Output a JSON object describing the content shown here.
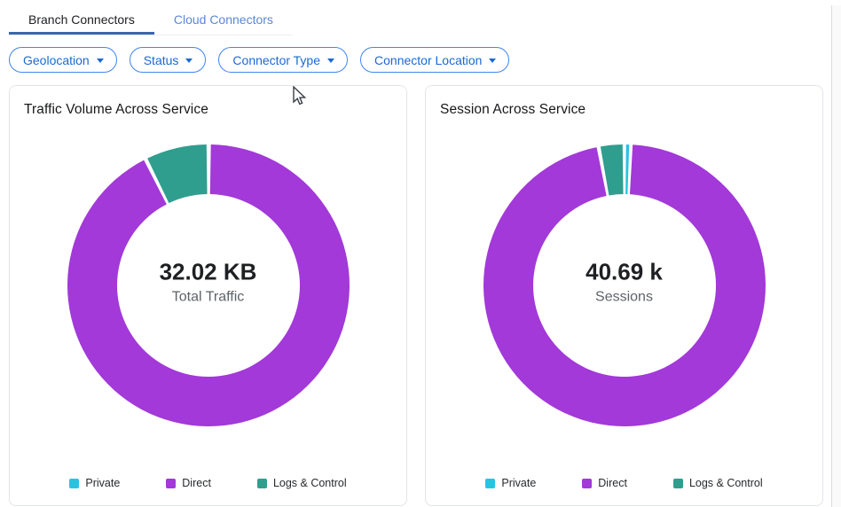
{
  "tabs": [
    {
      "label": "Branch Connectors",
      "active": true
    },
    {
      "label": "Cloud Connectors",
      "active": false
    }
  ],
  "filters": [
    {
      "label": "Geolocation"
    },
    {
      "label": "Status"
    },
    {
      "label": "Connector Type"
    },
    {
      "label": "Connector Location"
    }
  ],
  "colors": {
    "tab_underline": "#3a66b0",
    "filter_blue": "#1a69d4",
    "filter_border": "#4285f4",
    "private": "#29c3e1",
    "direct": "#a239d8",
    "logs_control": "#2f9e8e"
  },
  "chart_data": [
    {
      "type": "pie",
      "donut": true,
      "title": "Traffic Volume Across Service",
      "center_value": "32.02 KB",
      "center_label": "Total Traffic",
      "categories": [
        "Private",
        "Direct",
        "Logs & Control"
      ],
      "values_pct": [
        0.05,
        92.6,
        7.35
      ],
      "colors": [
        "#29c3e1",
        "#a239d8",
        "#2f9e8e"
      ],
      "legend_position": "bottom",
      "start_angle_deg": 0,
      "direction": "clockwise"
    },
    {
      "type": "pie",
      "donut": true,
      "title": "Session Across Service",
      "center_value": "40.69 k",
      "center_label": "Sessions",
      "categories": [
        "Private",
        "Direct",
        "Logs & Control"
      ],
      "values_pct": [
        0.7,
        96.35,
        2.95
      ],
      "colors": [
        "#29c3e1",
        "#a239d8",
        "#2f9e8e"
      ],
      "legend_position": "bottom",
      "start_angle_deg": 0,
      "direction": "clockwise"
    }
  ]
}
